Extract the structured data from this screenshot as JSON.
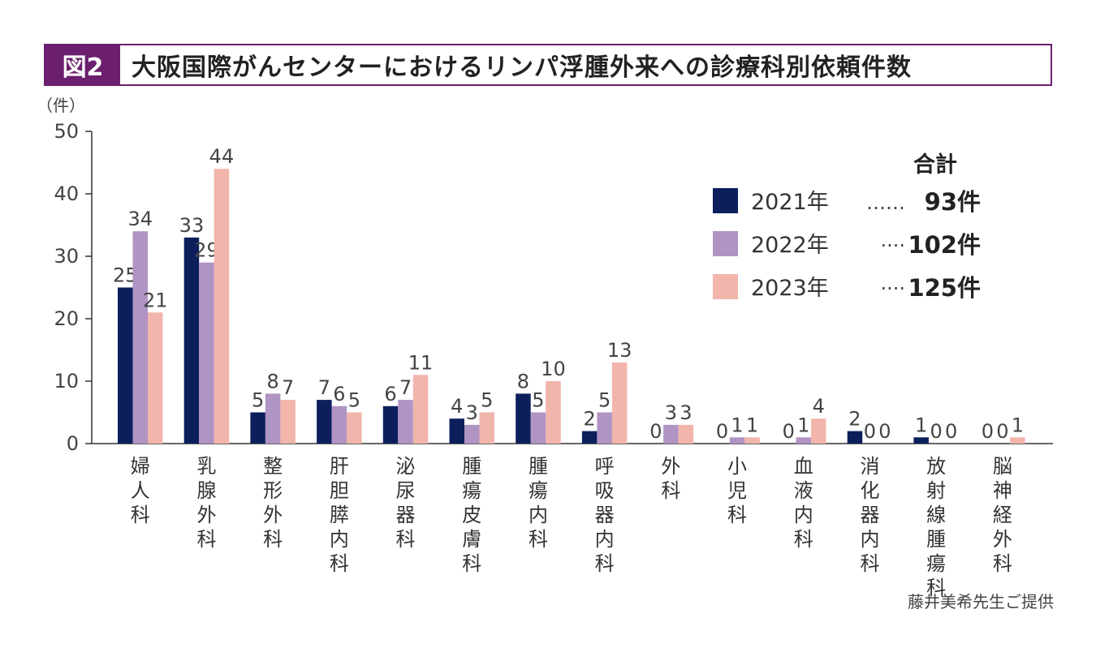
{
  "header": {
    "badge": "図2",
    "title": "大阪国際がんセンターにおけるリンパ浮腫外来への診療科別依頼件数"
  },
  "credit": "藤井美希先生ご提供",
  "legend": {
    "total_label": "合計",
    "entries": [
      {
        "label": "2021年",
        "dots": "……",
        "total": "93件",
        "color": "#0c1f5c"
      },
      {
        "label": "2022年",
        "dots": "····",
        "total": "102件",
        "color": "#b094c4"
      },
      {
        "label": "2023年",
        "dots": "····",
        "total": "125件",
        "color": "#f1b5ab"
      }
    ]
  },
  "chart_data": {
    "type": "bar",
    "ylabel": "（件）",
    "ylim": [
      0,
      50
    ],
    "yticks": [
      0,
      10,
      20,
      30,
      40,
      50
    ],
    "categories": [
      "婦人科",
      "乳腺外科",
      "整形外科",
      "肝胆膵内科",
      "泌尿器科",
      "腫瘍皮膚科",
      "腫瘍内科",
      "呼吸器内科",
      "外科",
      "小児科",
      "血液内科",
      "消化器内科",
      "放射線腫瘍科",
      "脳神経外科"
    ],
    "series": [
      {
        "name": "2021年",
        "color": "#0c1f5c",
        "values": [
          25,
          33,
          5,
          7,
          6,
          4,
          8,
          2,
          0,
          0,
          0,
          2,
          1,
          0
        ]
      },
      {
        "name": "2022年",
        "color": "#b094c4",
        "values": [
          34,
          29,
          8,
          6,
          7,
          3,
          5,
          5,
          3,
          1,
          1,
          0,
          0,
          0
        ]
      },
      {
        "name": "2023年",
        "color": "#f1b5ab",
        "values": [
          21,
          44,
          7,
          5,
          11,
          5,
          10,
          13,
          3,
          1,
          4,
          0,
          0,
          1
        ]
      }
    ]
  }
}
